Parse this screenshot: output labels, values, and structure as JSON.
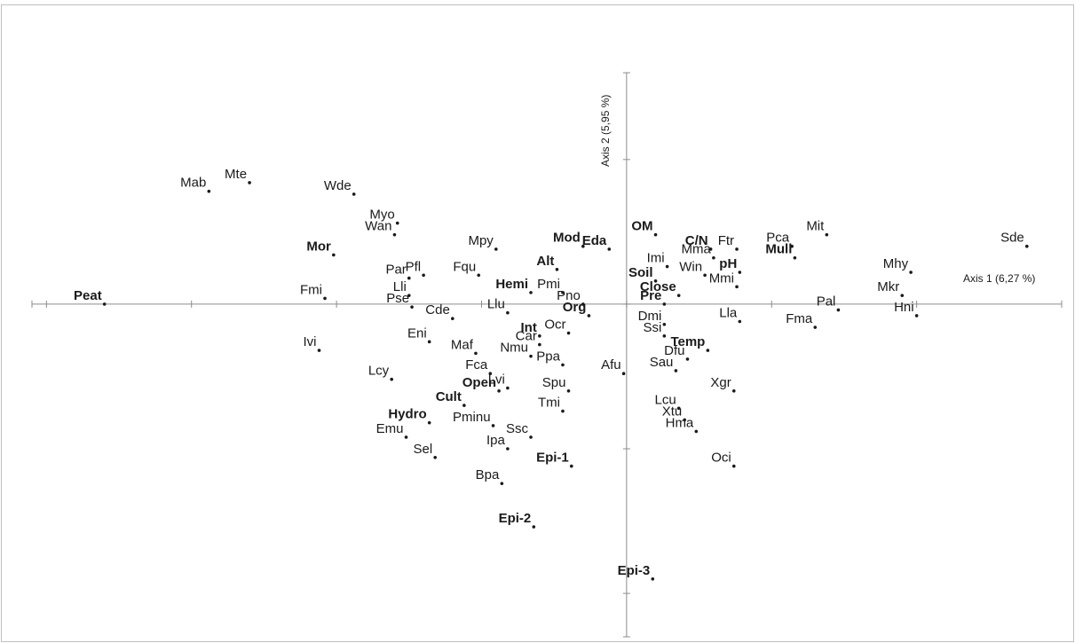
{
  "chart_data": {
    "type": "scatter",
    "x_axis_label": "Axis 1 (6,27 %)",
    "y_axis_label": "Axis 2 (5,95 %)",
    "xlim": [
      -2.05,
      1.5
    ],
    "ylim": [
      -1.15,
      0.8
    ],
    "grid": false,
    "species": [
      {
        "label": "Mab",
        "x": -1.44,
        "y": 0.39,
        "bold": false
      },
      {
        "label": "Mte",
        "x": -1.3,
        "y": 0.42,
        "bold": false
      },
      {
        "label": "Wde",
        "x": -0.94,
        "y": 0.38,
        "bold": false
      },
      {
        "label": "Myo",
        "x": -0.79,
        "y": 0.28,
        "bold": false
      },
      {
        "label": "Wan",
        "x": -0.8,
        "y": 0.24,
        "bold": false
      },
      {
        "label": "Par",
        "x": -0.75,
        "y": 0.09,
        "bold": false
      },
      {
        "label": "Pfl",
        "x": -0.7,
        "y": 0.1,
        "bold": false
      },
      {
        "label": "Lli",
        "x": -0.75,
        "y": 0.03,
        "bold": false
      },
      {
        "label": "Pse",
        "x": -0.74,
        "y": -0.01,
        "bold": false
      },
      {
        "label": "Fmi",
        "x": -1.04,
        "y": 0.02,
        "bold": false
      },
      {
        "label": "Ivi",
        "x": -1.06,
        "y": -0.16,
        "bold": false
      },
      {
        "label": "Eni",
        "x": -0.68,
        "y": -0.13,
        "bold": false
      },
      {
        "label": "Lcy",
        "x": -0.81,
        "y": -0.26,
        "bold": false
      },
      {
        "label": "Emu",
        "x": -0.76,
        "y": -0.46,
        "bold": false
      },
      {
        "label": "Sel",
        "x": -0.66,
        "y": -0.53,
        "bold": false
      },
      {
        "label": "Cde",
        "x": -0.6,
        "y": -0.05,
        "bold": false
      },
      {
        "label": "Mpy",
        "x": -0.45,
        "y": 0.19,
        "bold": false
      },
      {
        "label": "Fqu",
        "x": -0.51,
        "y": 0.1,
        "bold": false
      },
      {
        "label": "Llu",
        "x": -0.41,
        "y": -0.03,
        "bold": false
      },
      {
        "label": "Maf",
        "x": -0.52,
        "y": -0.17,
        "bold": false
      },
      {
        "label": "Fca",
        "x": -0.47,
        "y": -0.24,
        "bold": false
      },
      {
        "label": "Lvi",
        "x": -0.41,
        "y": -0.29,
        "bold": false
      },
      {
        "label": "Pminu",
        "x": -0.46,
        "y": -0.42,
        "bold": false
      },
      {
        "label": "Ipa",
        "x": -0.41,
        "y": -0.5,
        "bold": false
      },
      {
        "label": "Ssc",
        "x": -0.33,
        "y": -0.46,
        "bold": false
      },
      {
        "label": "Bpa",
        "x": -0.43,
        "y": -0.62,
        "bold": false
      },
      {
        "label": "Car",
        "x": -0.3,
        "y": -0.14,
        "bold": false
      },
      {
        "label": "Nmu",
        "x": -0.33,
        "y": -0.18,
        "bold": false
      },
      {
        "label": "Ocr",
        "x": -0.2,
        "y": -0.1,
        "bold": false
      },
      {
        "label": "Ppa",
        "x": -0.22,
        "y": -0.21,
        "bold": false
      },
      {
        "label": "Spu",
        "x": -0.2,
        "y": -0.3,
        "bold": false
      },
      {
        "label": "Tmi",
        "x": -0.22,
        "y": -0.37,
        "bold": false
      },
      {
        "label": "Pmi",
        "x": -0.22,
        "y": 0.04,
        "bold": false
      },
      {
        "label": "Pno",
        "x": -0.15,
        "y": 0.0,
        "bold": false
      },
      {
        "label": "Afu",
        "x": -0.01,
        "y": -0.24,
        "bold": false
      },
      {
        "label": "Imi",
        "x": 0.14,
        "y": 0.13,
        "bold": false
      },
      {
        "label": "Mma",
        "x": 0.3,
        "y": 0.16,
        "bold": false
      },
      {
        "label": "Win",
        "x": 0.27,
        "y": 0.1,
        "bold": false
      },
      {
        "label": "Mmi",
        "x": 0.38,
        "y": 0.06,
        "bold": false
      },
      {
        "label": "Ftr",
        "x": 0.38,
        "y": 0.19,
        "bold": false
      },
      {
        "label": "Dmi",
        "x": 0.13,
        "y": -0.07,
        "bold": false
      },
      {
        "label": "Ssi",
        "x": 0.13,
        "y": -0.11,
        "bold": false
      },
      {
        "label": "Lla",
        "x": 0.39,
        "y": -0.06,
        "bold": false
      },
      {
        "label": "Dfu",
        "x": 0.21,
        "y": -0.19,
        "bold": false
      },
      {
        "label": "Sau",
        "x": 0.17,
        "y": -0.23,
        "bold": false
      },
      {
        "label": "Xgr",
        "x": 0.37,
        "y": -0.3,
        "bold": false
      },
      {
        "label": "Lcu",
        "x": 0.18,
        "y": -0.36,
        "bold": false
      },
      {
        "label": "Xtu",
        "x": 0.2,
        "y": -0.4,
        "bold": false
      },
      {
        "label": "Hma",
        "x": 0.24,
        "y": -0.44,
        "bold": false
      },
      {
        "label": "Oci",
        "x": 0.37,
        "y": -0.56,
        "bold": false
      },
      {
        "label": "Pca",
        "x": 0.57,
        "y": 0.2,
        "bold": false
      },
      {
        "label": "Mit",
        "x": 0.69,
        "y": 0.24,
        "bold": false
      },
      {
        "label": "Pal",
        "x": 0.73,
        "y": -0.02,
        "bold": false
      },
      {
        "label": "Fma",
        "x": 0.65,
        "y": -0.08,
        "bold": false
      },
      {
        "label": "Mhy",
        "x": 0.98,
        "y": 0.11,
        "bold": false
      },
      {
        "label": "Mkr",
        "x": 0.95,
        "y": 0.03,
        "bold": false
      },
      {
        "label": "Hni",
        "x": 1.0,
        "y": -0.04,
        "bold": false
      },
      {
        "label": "Sde",
        "x": 1.38,
        "y": 0.2,
        "bold": false
      }
    ],
    "variables": [
      {
        "label": "Peat",
        "x": -1.8,
        "y": 0.0,
        "bold": true
      },
      {
        "label": "Mor",
        "x": -1.01,
        "y": 0.17,
        "bold": true
      },
      {
        "label": "Hemi",
        "x": -0.33,
        "y": 0.04,
        "bold": true
      },
      {
        "label": "Alt",
        "x": -0.24,
        "y": 0.12,
        "bold": true
      },
      {
        "label": "Mod",
        "x": -0.15,
        "y": 0.2,
        "bold": true
      },
      {
        "label": "Eda",
        "x": -0.06,
        "y": 0.19,
        "bold": true
      },
      {
        "label": "Org",
        "x": -0.13,
        "y": -0.04,
        "bold": true
      },
      {
        "label": "Int",
        "x": -0.3,
        "y": -0.11,
        "bold": true
      },
      {
        "label": "Open",
        "x": -0.44,
        "y": -0.3,
        "bold": true
      },
      {
        "label": "Cult",
        "x": -0.56,
        "y": -0.35,
        "bold": true
      },
      {
        "label": "Hydro",
        "x": -0.68,
        "y": -0.41,
        "bold": true
      },
      {
        "label": "Epi-1",
        "x": -0.19,
        "y": -0.56,
        "bold": true
      },
      {
        "label": "Epi-2",
        "x": -0.32,
        "y": -0.77,
        "bold": true
      },
      {
        "label": "Epi-3",
        "x": 0.09,
        "y": -0.95,
        "bold": true
      },
      {
        "label": "OM",
        "x": 0.1,
        "y": 0.24,
        "bold": true
      },
      {
        "label": "C/N",
        "x": 0.29,
        "y": 0.19,
        "bold": true
      },
      {
        "label": "Soil",
        "x": 0.1,
        "y": 0.08,
        "bold": true
      },
      {
        "label": "pH",
        "x": 0.39,
        "y": 0.11,
        "bold": true
      },
      {
        "label": "Close",
        "x": 0.18,
        "y": 0.03,
        "bold": true
      },
      {
        "label": "Pre",
        "x": 0.13,
        "y": 0.0,
        "bold": true
      },
      {
        "label": "Temp",
        "x": 0.28,
        "y": -0.16,
        "bold": true
      },
      {
        "label": "Mull",
        "x": 0.58,
        "y": 0.16,
        "bold": true
      }
    ]
  }
}
